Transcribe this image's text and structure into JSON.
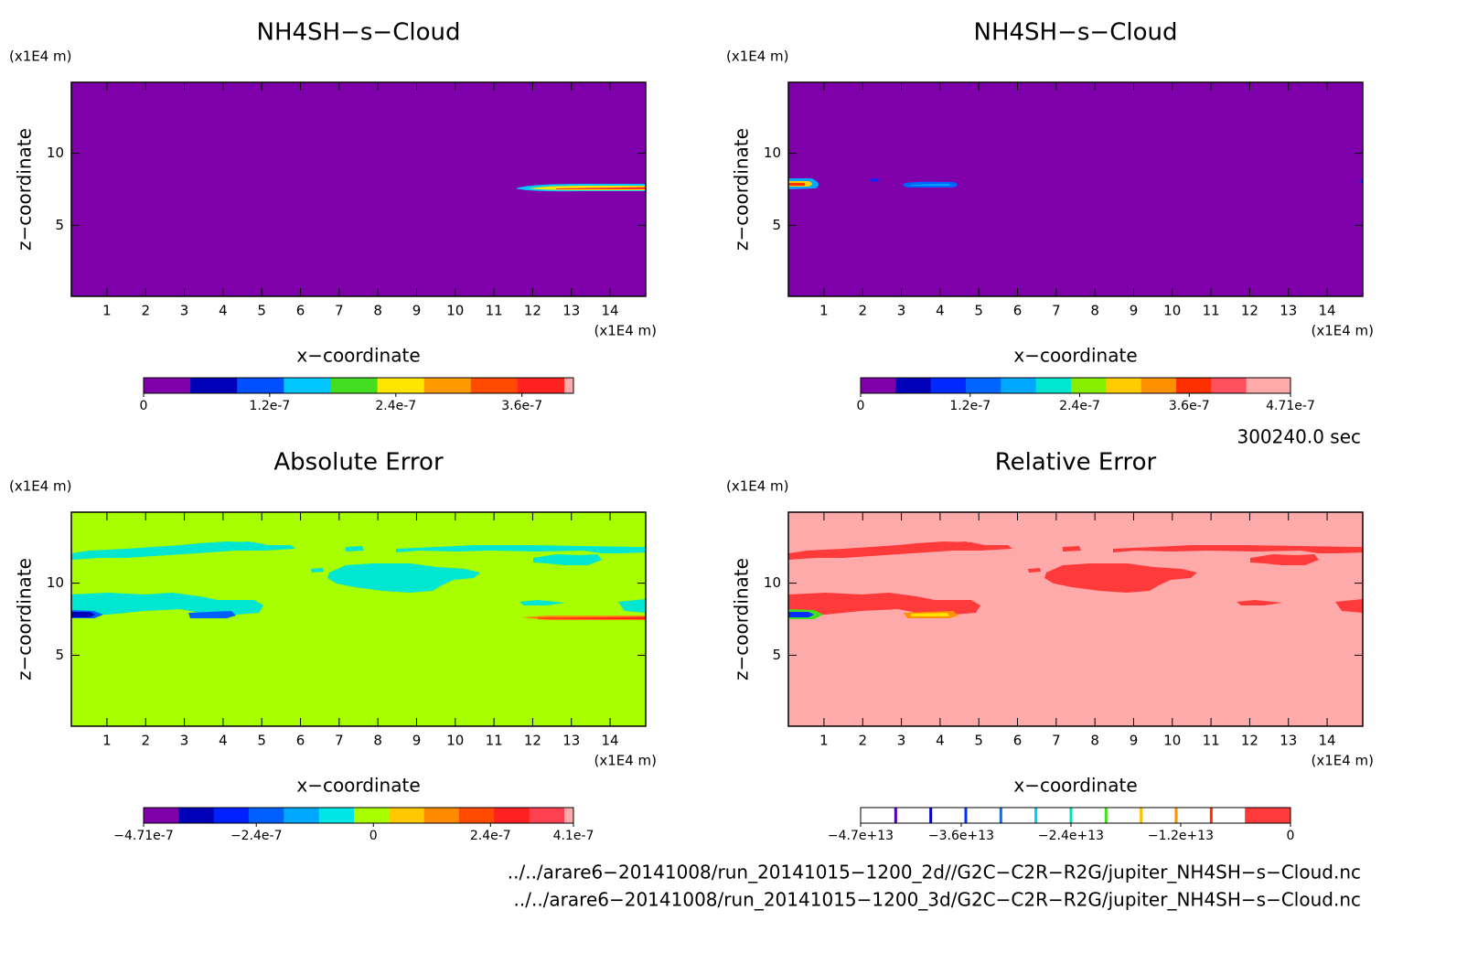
{
  "chart_data": [
    {
      "type": "contour",
      "title": "NH4SH−s−Cloud",
      "x_label": "x−coordinate",
      "y_label": "z−coordinate",
      "x_unit": "(x1E4 m)",
      "y_unit": "(x1E4 m)",
      "xlim": [
        0.08,
        14.92
      ],
      "ylim": [
        0.08,
        14.92
      ],
      "xticks": [
        1,
        2,
        3,
        4,
        5,
        6,
        7,
        8,
        9,
        10,
        11,
        12,
        13,
        14
      ],
      "yticks": [
        5,
        10
      ],
      "background": "#7f00aa",
      "colorbar": {
        "clim": [
          0,
          4.09e-07
        ],
        "colors": [
          "#7f00aa",
          "#0000b8",
          "#0050ff",
          "#00c8ff",
          "#44dd22",
          "#ffe600",
          "#ff9900",
          "#ff4a00",
          "#ff2020"
        ],
        "end_color": "#ffaaaa",
        "ticks": [
          0,
          {
            "value": 1.2e-07,
            "label": "1.2e-7"
          },
          {
            "value": 2.4e-07,
            "label": "2.4e-7"
          },
          {
            "value": 3.6e-07,
            "label": "3.6e-7"
          }
        ]
      }
    },
    {
      "type": "contour",
      "title": "NH4SH−s−Cloud",
      "x_label": "x−coordinate",
      "y_label": "z−coordinate",
      "x_unit": "(x1E4 m)",
      "y_unit": "(x1E4 m)",
      "xlim": [
        0.08,
        14.92
      ],
      "ylim": [
        0.08,
        14.92
      ],
      "xticks": [
        1,
        2,
        3,
        4,
        5,
        6,
        7,
        8,
        9,
        10,
        11,
        12,
        13,
        14
      ],
      "yticks": [
        5,
        10
      ],
      "background": "#7f00aa",
      "colorbar": {
        "clim": [
          0,
          4.71e-07
        ],
        "colors": [
          "#7f00aa",
          "#0000b8",
          "#0028ff",
          "#0064ff",
          "#00a8ff",
          "#00e6d0",
          "#88ee00",
          "#ffcc00",
          "#ff9000",
          "#ff3000",
          "#ff5060",
          "#ffaaaa"
        ],
        "end_color": "#ffaaaa",
        "ticks": [
          0,
          {
            "value": 1.2e-07,
            "label": "1.2e-7"
          },
          {
            "value": 2.4e-07,
            "label": "2.4e-7"
          },
          {
            "value": 3.6e-07,
            "label": "3.6e-7"
          },
          {
            "value": 4.71e-07,
            "label": "4.71e-7"
          }
        ]
      }
    },
    {
      "type": "contour",
      "title": "Absolute Error",
      "x_label": "x−coordinate",
      "y_label": "z−coordinate",
      "x_unit": "(x1E4 m)",
      "y_unit": "(x1E4 m)",
      "xlim": [
        0.08,
        14.92
      ],
      "ylim": [
        0.08,
        14.92
      ],
      "xticks": [
        1,
        2,
        3,
        4,
        5,
        6,
        7,
        8,
        9,
        10,
        11,
        12,
        13,
        14
      ],
      "yticks": [
        5,
        10
      ],
      "background": "#a8ff00",
      "colorbar": {
        "clim": [
          -4.71e-07,
          4.1e-07
        ],
        "colors": [
          "#7f00aa",
          "#0000b8",
          "#0020ff",
          "#0060ff",
          "#00a8ff",
          "#00e6e6",
          "#a8ff00",
          "#ffc800",
          "#ff8a00",
          "#ff4a00",
          "#ff2020",
          "#ff4050"
        ],
        "end_color": "#ffaaaa",
        "ticks": [
          {
            "value": -4.71e-07,
            "label": "−4.71e-7"
          },
          {
            "value": -2.4e-07,
            "label": "−2.4e-7"
          },
          0,
          {
            "value": 2.4e-07,
            "label": "2.4e-7"
          },
          {
            "value": 4.1e-07,
            "label": "4.1e-7"
          }
        ]
      }
    },
    {
      "type": "contour",
      "title": "Relative Error",
      "x_label": "x−coordinate",
      "y_label": "z−coordinate",
      "x_unit": "(x1E4 m)",
      "y_unit": "(x1E4 m)",
      "xlim": [
        0.08,
        14.92
      ],
      "ylim": [
        0.08,
        14.92
      ],
      "xticks": [
        1,
        2,
        3,
        4,
        5,
        6,
        7,
        8,
        9,
        10,
        11,
        12,
        13,
        14
      ],
      "yticks": [
        5,
        10
      ],
      "background": "#ffaaaa",
      "colorbar": {
        "clim": [
          -47000000000000.0,
          0
        ],
        "colors": [
          "#ffffff",
          "#ffffff",
          "#ffffff",
          "#ffffff",
          "#ffffff",
          "#ffffff",
          "#ffffff",
          "#ffffff",
          "#ffffff",
          "#ffffff",
          "#ffffff",
          "#ff3a3a"
        ],
        "end_color": "#ff3a3a",
        "line_colors": [
          "#5000b0",
          "#0000c0",
          "#0030ff",
          "#0070ff",
          "#00c8ff",
          "#00e0c0",
          "#40e020",
          "#ffc000",
          "#ff9000",
          "#ff3000",
          "#ff3a3a"
        ],
        "ticks": [
          {
            "value": -47000000000000.0,
            "label": "−4.7e+13"
          },
          {
            "value": -36000000000000.0,
            "label": "−3.6e+13"
          },
          {
            "value": -24000000000000.0,
            "label": "−2.4e+13"
          },
          {
            "value": -12000000000000.0,
            "label": "−1.2e+13"
          },
          0
        ]
      }
    }
  ],
  "time_label": "300240.0 sec",
  "footer": [
    "../../arare6−20141008/run_20141015−1200_2d//G2C−C2R−R2G/jupiter_NH4SH−s−Cloud.nc",
    "../../arare6−20141008/run_20141015−1200_3d/G2C−C2R−R2G/jupiter_NH4SH−s−Cloud.nc"
  ]
}
